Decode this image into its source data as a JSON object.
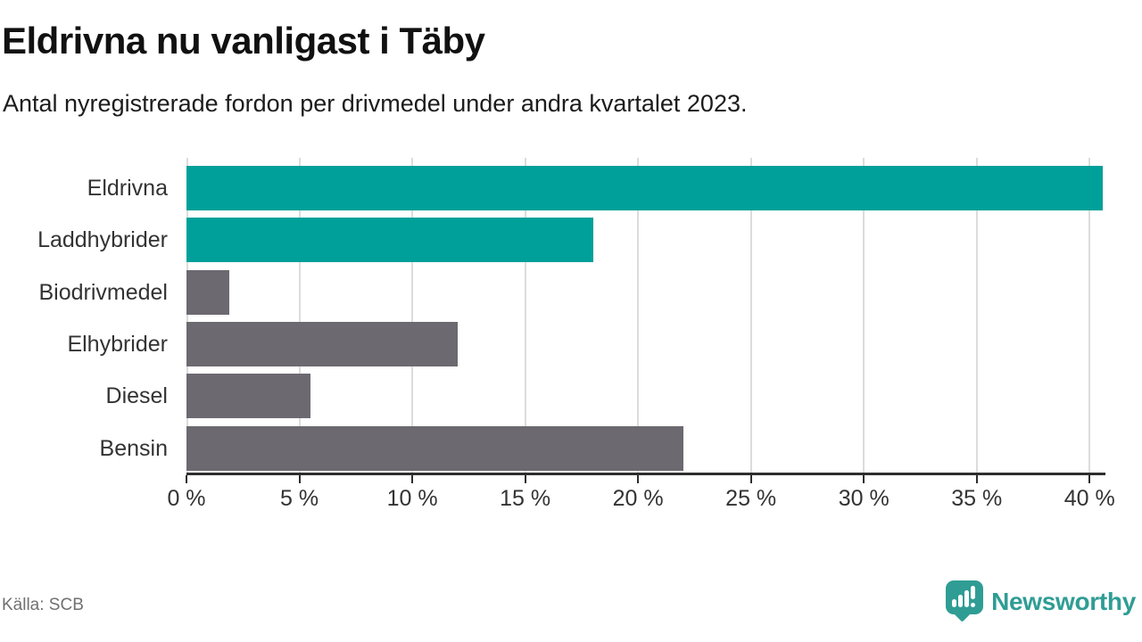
{
  "header": {
    "title": "Eldrivna nu vanligast i Täby",
    "subtitle": "Antal nyregistrerade fordon per drivmedel under andra kvartalet 2023."
  },
  "chart_data": {
    "type": "bar",
    "orientation": "horizontal",
    "title": "Eldrivna nu vanligast i Täby",
    "subtitle": "Antal nyregistrerade fordon per drivmedel under andra kvartalet 2023.",
    "categories": [
      "Eldrivna",
      "Laddhybrider",
      "Biodrivmedel",
      "Elhybrider",
      "Diesel",
      "Bensin"
    ],
    "values": [
      40.6,
      18,
      1.9,
      12,
      5.5,
      22
    ],
    "unit": "%",
    "bar_colors": [
      "#00a09a",
      "#00a09a",
      "#6c6970",
      "#6c6970",
      "#6c6970",
      "#6c6970"
    ],
    "xlim": [
      0,
      40.7
    ],
    "x_ticks": [
      0,
      5,
      10,
      15,
      20,
      25,
      30,
      35,
      40
    ],
    "x_tick_labels": [
      "0 %",
      "5 %",
      "10 %",
      "15 %",
      "20 %",
      "25 %",
      "30 %",
      "35 %",
      "40 %"
    ],
    "grid": "vertical",
    "xlabel": "",
    "ylabel": "",
    "legend": "none"
  },
  "footer": {
    "source": "Källa: SCB",
    "logo_text": "Newsworthy"
  },
  "colors": {
    "accent_teal": "#00a09a",
    "bar_gray": "#6c6970",
    "logo_teal": "#2f9d94",
    "gridline": "#dcdcdc",
    "axis": "#2e2e2e",
    "title_text": "#111111",
    "label_text": "#333333",
    "source_text": "#707070"
  }
}
